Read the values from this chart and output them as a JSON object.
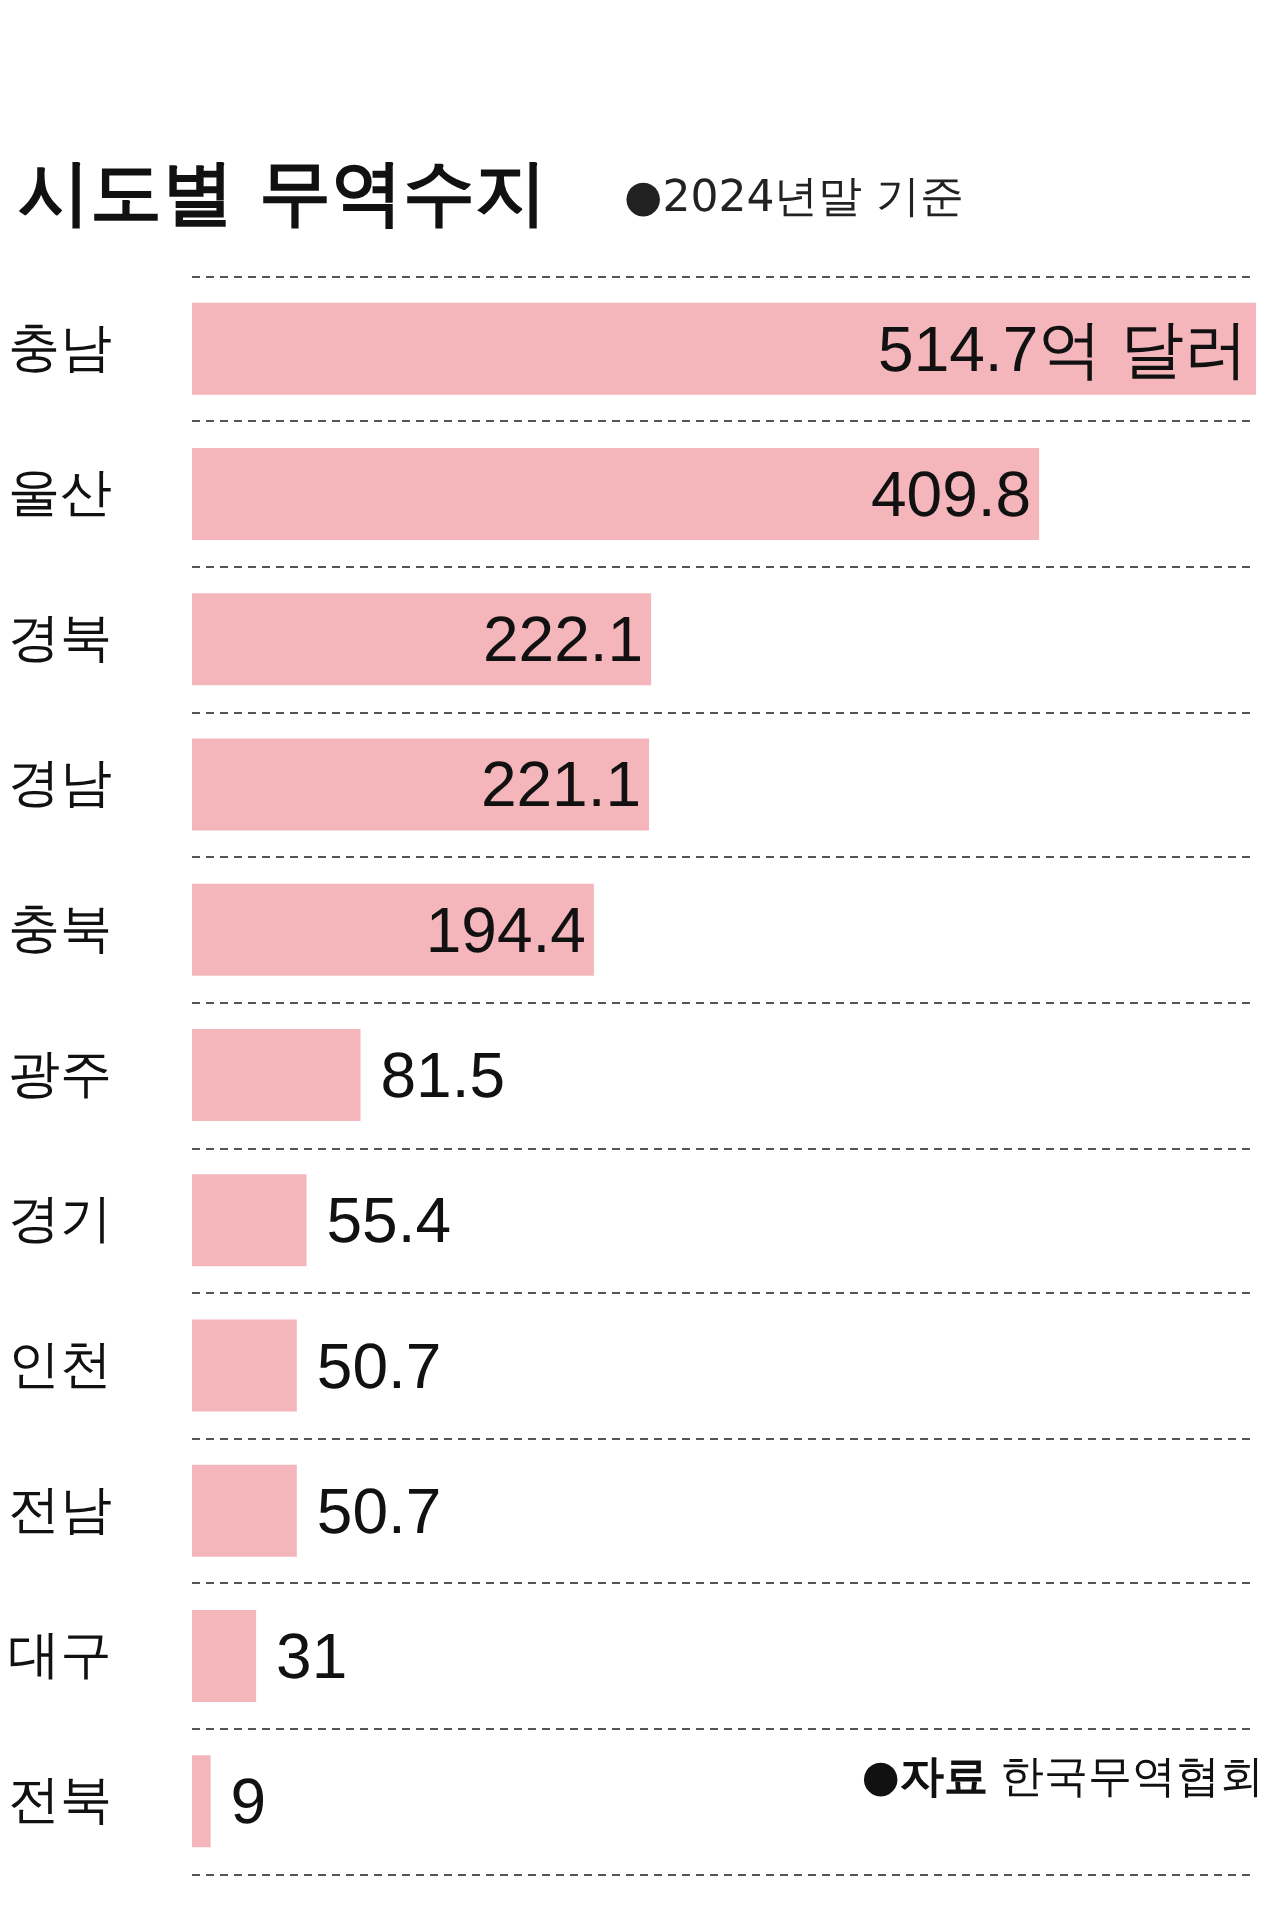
{
  "chart_data": {
    "type": "bar",
    "orientation": "horizontal",
    "title": "시도별 무역수지",
    "subtitle": "●2024년말 기준",
    "categories": [
      "충남",
      "울산",
      "경북",
      "경남",
      "충북",
      "광주",
      "경기",
      "인천",
      "전남",
      "대구",
      "전북"
    ],
    "values": [
      514.7,
      409.8,
      222.1,
      221.1,
      194.4,
      81.5,
      55.4,
      50.7,
      50.7,
      31,
      9
    ],
    "value_labels": [
      "514.7억 달러",
      "409.8",
      "222.1",
      "221.1",
      "194.4",
      "81.5",
      "55.4",
      "50.7",
      "50.7",
      "31",
      "9"
    ],
    "color": "#f4b6bb",
    "grid": "y",
    "annotations": [
      "●자료 한국무역협회"
    ]
  }
}
